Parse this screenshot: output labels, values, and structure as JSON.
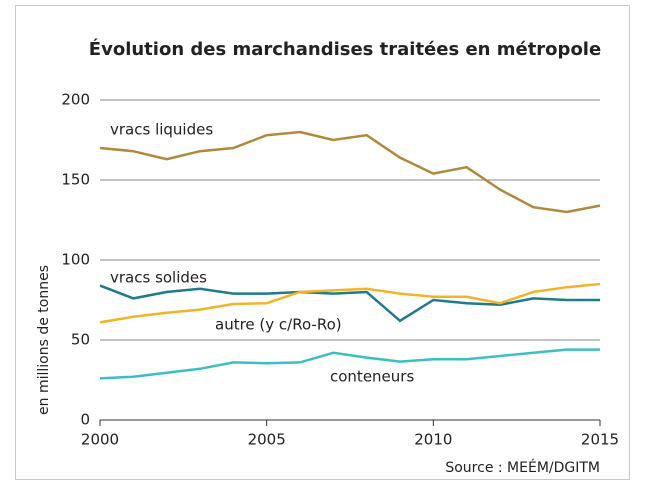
{
  "chart_data": {
    "type": "line",
    "title": "Évolution des marchandises traitées en métropole",
    "y_label": "en millions de tonnes",
    "source": "Source : MEÉM/DGITM",
    "x": [
      2000,
      2001,
      2002,
      2003,
      2004,
      2005,
      2006,
      2007,
      2008,
      2009,
      2010,
      2011,
      2012,
      2013,
      2014,
      2015
    ],
    "xlim": [
      2000,
      2015
    ],
    "xticks": [
      2000,
      2005,
      2010,
      2015
    ],
    "ylim": [
      0,
      200
    ],
    "yticks": [
      0,
      50,
      100,
      150,
      200
    ],
    "grid": true,
    "series": [
      {
        "name": "vracs liquides",
        "color": "#b08a3a",
        "values": [
          170,
          168,
          163,
          168,
          170,
          178,
          180,
          175,
          178,
          164,
          154,
          158,
          144,
          133,
          130,
          134
        ]
      },
      {
        "name": "vracs solides",
        "color": "#1f7a8c",
        "values": [
          84,
          76,
          80,
          82,
          79,
          79,
          80,
          79,
          80,
          62,
          75,
          73,
          72,
          76,
          75,
          75
        ]
      },
      {
        "name": "autre (y c/Ro-Ro)",
        "color": "#f0b429",
        "values": [
          61,
          64.5,
          67,
          69,
          72.5,
          73,
          80,
          81,
          82,
          79,
          77,
          77,
          73,
          80,
          83,
          85
        ]
      },
      {
        "name": "conteneurs",
        "color": "#3cbfc4",
        "values": [
          26,
          27,
          29.5,
          32,
          36,
          35.5,
          36,
          42,
          39,
          36.5,
          38,
          38,
          40,
          42,
          44,
          44
        ]
      }
    ]
  }
}
